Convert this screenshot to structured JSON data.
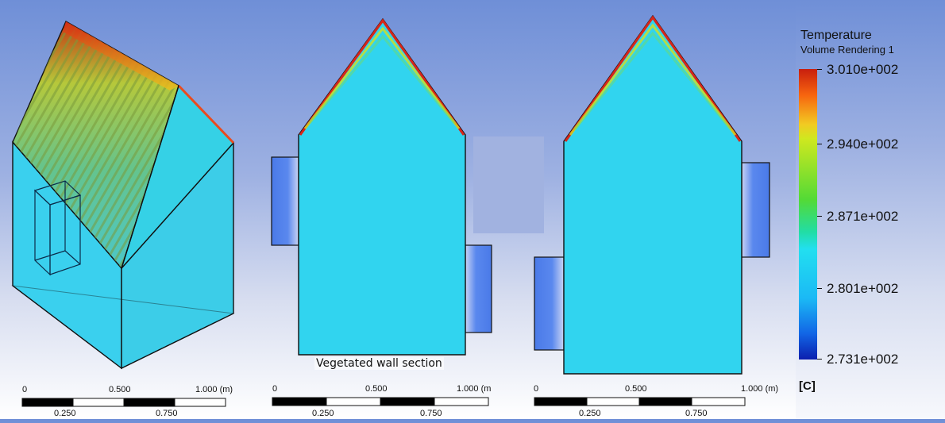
{
  "legend": {
    "title": "Temperature",
    "subtitle": "Volume Rendering 1",
    "ticks": [
      "3.010e+002",
      "2.940e+002",
      "2.871e+002",
      "2.801e+002",
      "2.731e+002"
    ],
    "unit": "[C]"
  },
  "caption": "Vegetated wall section",
  "scale_bars": [
    {
      "top_labels": [
        "0",
        "0.500",
        "1.000 (m)"
      ],
      "bottom_labels": [
        "0.250",
        "0.750"
      ]
    },
    {
      "top_labels": [
        "0",
        "0.500",
        "1.000 (m"
      ],
      "bottom_labels": [
        "0.250",
        "0.750"
      ]
    },
    {
      "top_labels": [
        "0",
        "0.500",
        "1.000 (m)"
      ],
      "bottom_labels": [
        "0.250",
        "0.750"
      ]
    }
  ],
  "colors": {
    "background_top": "#6f8fd7",
    "domain_fill": "#2fd3ec",
    "hot_edge": "#d7261a",
    "panel_blue": "#3f6fe0"
  }
}
